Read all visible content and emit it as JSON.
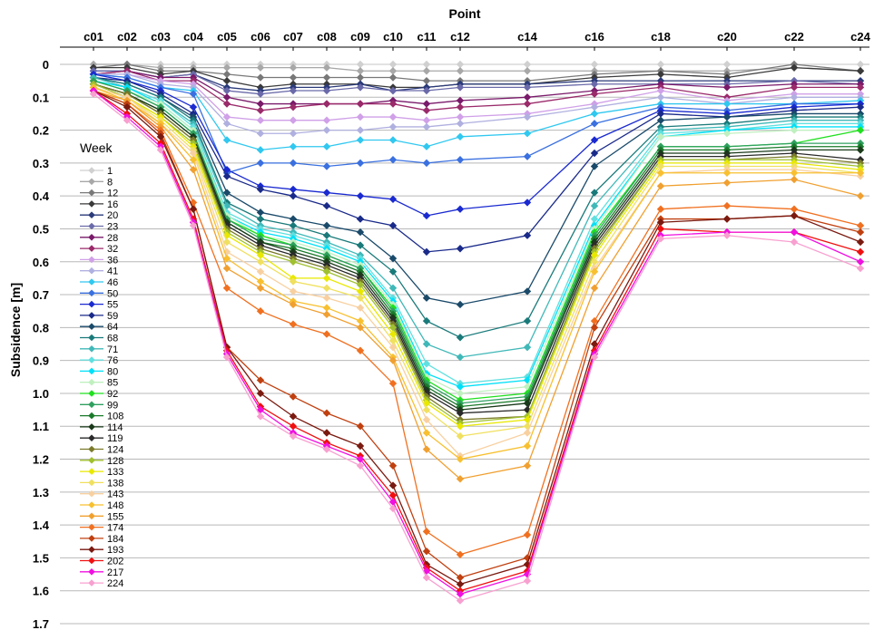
{
  "chart_data": {
    "type": "line",
    "xlabel": "Point",
    "ylabel": "Subsidence [m]",
    "legend_title": "Week",
    "legend_position": "left",
    "grid": true,
    "y_inverted": true,
    "ylim": [
      0,
      1.7
    ],
    "yticks": [
      "0",
      "0.1",
      "0.2",
      "0.3",
      "0.4",
      "0.5",
      "0.6",
      "0.7",
      "0.8",
      "0.9",
      "1.0",
      "1.1",
      "1.2",
      "1.3",
      "1.4",
      "1.5",
      "1.6",
      "1.7"
    ],
    "categories": [
      "c01",
      "c02",
      "c03",
      "c04",
      "c05",
      "c06",
      "c07",
      "c08",
      "c09",
      "c10",
      "c11",
      "c12",
      "c14",
      "c16",
      "c18",
      "c20",
      "c22",
      "c24"
    ],
    "series": [
      {
        "name": "1",
        "color": "#d0d0d0",
        "values": [
          0.0,
          0.0,
          0.0,
          0.0,
          0.0,
          0.0,
          0.0,
          0.0,
          0.0,
          0.0,
          0.0,
          0.0,
          0.0,
          0.0,
          0.0,
          0.0,
          0.0,
          0.0
        ]
      },
      {
        "name": "8",
        "color": "#a8a8a8",
        "values": [
          0.0,
          0.0,
          0.01,
          0.01,
          0.01,
          0.01,
          0.01,
          0.01,
          0.02,
          0.02,
          0.02,
          0.02,
          0.02,
          0.02,
          0.02,
          0.02,
          0.01,
          0.02
        ]
      },
      {
        "name": "12",
        "color": "#787878",
        "values": [
          0.01,
          0.0,
          0.02,
          0.02,
          0.03,
          0.04,
          0.04,
          0.04,
          0.04,
          0.04,
          0.05,
          0.05,
          0.05,
          0.03,
          0.02,
          0.03,
          0.0,
          0.02
        ]
      },
      {
        "name": "16",
        "color": "#3a3a3a",
        "values": [
          0.01,
          0.01,
          0.03,
          0.02,
          0.05,
          0.07,
          0.06,
          0.06,
          0.06,
          0.07,
          0.07,
          0.06,
          0.06,
          0.04,
          0.03,
          0.04,
          0.01,
          0.02
        ]
      },
      {
        "name": "20",
        "color": "#2a3a7a",
        "values": [
          0.02,
          0.02,
          0.04,
          0.03,
          0.07,
          0.08,
          0.07,
          0.07,
          0.06,
          0.08,
          0.07,
          0.06,
          0.06,
          0.05,
          0.05,
          0.05,
          0.05,
          0.05
        ]
      },
      {
        "name": "23",
        "color": "#6a6aaa",
        "values": [
          0.02,
          0.02,
          0.04,
          0.03,
          0.08,
          0.09,
          0.08,
          0.08,
          0.07,
          0.08,
          0.08,
          0.07,
          0.07,
          0.06,
          0.06,
          0.06,
          0.05,
          0.06
        ]
      },
      {
        "name": "28",
        "color": "#7a1a6a",
        "values": [
          0.03,
          0.02,
          0.04,
          0.04,
          0.1,
          0.12,
          0.12,
          0.12,
          0.12,
          0.11,
          0.12,
          0.11,
          0.1,
          0.08,
          0.06,
          0.07,
          0.06,
          0.06
        ]
      },
      {
        "name": "32",
        "color": "#9a2a6a",
        "values": [
          0.03,
          0.02,
          0.05,
          0.05,
          0.12,
          0.14,
          0.13,
          0.12,
          0.12,
          0.12,
          0.14,
          0.13,
          0.12,
          0.09,
          0.07,
          0.1,
          0.07,
          0.07
        ]
      },
      {
        "name": "36",
        "color": "#d0a0e8",
        "values": [
          0.03,
          0.03,
          0.05,
          0.06,
          0.16,
          0.17,
          0.17,
          0.17,
          0.16,
          0.16,
          0.17,
          0.16,
          0.15,
          0.12,
          0.08,
          0.11,
          0.09,
          0.09
        ]
      },
      {
        "name": "41",
        "color": "#b0b0e0",
        "values": [
          0.03,
          0.03,
          0.06,
          0.07,
          0.18,
          0.21,
          0.21,
          0.2,
          0.2,
          0.19,
          0.19,
          0.18,
          0.16,
          0.13,
          0.1,
          0.12,
          0.1,
          0.1
        ]
      },
      {
        "name": "46",
        "color": "#30c8f0",
        "values": [
          0.03,
          0.04,
          0.07,
          0.08,
          0.23,
          0.26,
          0.25,
          0.25,
          0.23,
          0.23,
          0.25,
          0.22,
          0.21,
          0.15,
          0.12,
          0.12,
          0.12,
          0.11
        ]
      },
      {
        "name": "50",
        "color": "#3a70e0",
        "values": [
          0.03,
          0.04,
          0.07,
          0.09,
          0.33,
          0.3,
          0.3,
          0.31,
          0.3,
          0.29,
          0.3,
          0.29,
          0.28,
          0.18,
          0.13,
          0.14,
          0.12,
          0.12
        ]
      },
      {
        "name": "55",
        "color": "#1a2ad0",
        "values": [
          0.03,
          0.05,
          0.08,
          0.13,
          0.32,
          0.37,
          0.38,
          0.39,
          0.4,
          0.41,
          0.46,
          0.44,
          0.42,
          0.23,
          0.14,
          0.15,
          0.13,
          0.12
        ]
      },
      {
        "name": "59",
        "color": "#1a2a8a",
        "values": [
          0.04,
          0.05,
          0.09,
          0.15,
          0.34,
          0.38,
          0.4,
          0.43,
          0.47,
          0.49,
          0.57,
          0.56,
          0.52,
          0.27,
          0.15,
          0.16,
          0.14,
          0.13
        ]
      },
      {
        "name": "64",
        "color": "#1a4a6a",
        "values": [
          0.04,
          0.06,
          0.1,
          0.16,
          0.39,
          0.45,
          0.47,
          0.49,
          0.51,
          0.59,
          0.71,
          0.73,
          0.69,
          0.31,
          0.17,
          0.16,
          0.15,
          0.15
        ]
      },
      {
        "name": "68",
        "color": "#1a7a7a",
        "values": [
          0.04,
          0.06,
          0.1,
          0.17,
          0.42,
          0.47,
          0.49,
          0.52,
          0.55,
          0.63,
          0.78,
          0.83,
          0.78,
          0.39,
          0.19,
          0.18,
          0.16,
          0.16
        ]
      },
      {
        "name": "71",
        "color": "#40b8b8",
        "values": [
          0.04,
          0.07,
          0.11,
          0.18,
          0.43,
          0.49,
          0.51,
          0.54,
          0.58,
          0.68,
          0.85,
          0.89,
          0.86,
          0.43,
          0.2,
          0.19,
          0.17,
          0.17
        ]
      },
      {
        "name": "76",
        "color": "#60e0e0",
        "values": [
          0.05,
          0.07,
          0.11,
          0.19,
          0.45,
          0.5,
          0.52,
          0.55,
          0.59,
          0.71,
          0.91,
          0.97,
          0.95,
          0.47,
          0.21,
          0.2,
          0.18,
          0.18
        ]
      },
      {
        "name": "80",
        "color": "#00e0f8",
        "values": [
          0.05,
          0.07,
          0.12,
          0.2,
          0.46,
          0.51,
          0.53,
          0.56,
          0.6,
          0.72,
          0.94,
          0.98,
          0.96,
          0.49,
          0.22,
          0.2,
          0.19,
          0.19
        ]
      },
      {
        "name": "85",
        "color": "#c0f0c0",
        "values": [
          0.05,
          0.08,
          0.12,
          0.2,
          0.46,
          0.52,
          0.54,
          0.57,
          0.61,
          0.73,
          0.95,
          1.0,
          0.98,
          0.5,
          0.22,
          0.21,
          0.2,
          0.2
        ]
      },
      {
        "name": "92",
        "color": "#20e020",
        "values": [
          0.05,
          0.08,
          0.13,
          0.21,
          0.47,
          0.52,
          0.55,
          0.58,
          0.62,
          0.74,
          0.96,
          1.02,
          1.0,
          0.51,
          0.25,
          0.25,
          0.24,
          0.2
        ]
      },
      {
        "name": "99",
        "color": "#30a060",
        "values": [
          0.05,
          0.08,
          0.13,
          0.21,
          0.47,
          0.53,
          0.55,
          0.58,
          0.62,
          0.75,
          0.97,
          1.03,
          1.01,
          0.52,
          0.25,
          0.25,
          0.24,
          0.24
        ]
      },
      {
        "name": "108",
        "color": "#1a7a2a",
        "values": [
          0.06,
          0.09,
          0.14,
          0.22,
          0.48,
          0.54,
          0.56,
          0.59,
          0.63,
          0.76,
          0.98,
          1.04,
          1.02,
          0.53,
          0.26,
          0.26,
          0.25,
          0.25
        ]
      },
      {
        "name": "114",
        "color": "#1a3a1a",
        "values": [
          0.06,
          0.09,
          0.14,
          0.22,
          0.48,
          0.54,
          0.57,
          0.6,
          0.64,
          0.77,
          0.99,
          1.05,
          1.03,
          0.54,
          0.27,
          0.27,
          0.26,
          0.26
        ]
      },
      {
        "name": "119",
        "color": "#2a2a2a",
        "values": [
          0.06,
          0.09,
          0.15,
          0.23,
          0.49,
          0.55,
          0.58,
          0.61,
          0.65,
          0.78,
          1.0,
          1.06,
          1.05,
          0.55,
          0.28,
          0.28,
          0.27,
          0.29
        ]
      },
      {
        "name": "124",
        "color": "#7a7a2a",
        "values": [
          0.06,
          0.09,
          0.15,
          0.23,
          0.5,
          0.56,
          0.59,
          0.62,
          0.66,
          0.79,
          1.01,
          1.08,
          1.07,
          0.56,
          0.29,
          0.29,
          0.28,
          0.3
        ]
      },
      {
        "name": "128",
        "color": "#a0c030",
        "values": [
          0.06,
          0.1,
          0.16,
          0.24,
          0.51,
          0.57,
          0.6,
          0.63,
          0.67,
          0.8,
          1.02,
          1.09,
          1.07,
          0.57,
          0.29,
          0.29,
          0.29,
          0.31
        ]
      },
      {
        "name": "133",
        "color": "#e8e800",
        "values": [
          0.07,
          0.1,
          0.16,
          0.25,
          0.52,
          0.58,
          0.65,
          0.65,
          0.69,
          0.82,
          1.03,
          1.1,
          1.08,
          0.58,
          0.3,
          0.3,
          0.3,
          0.32
        ]
      },
      {
        "name": "138",
        "color": "#f0e060",
        "values": [
          0.07,
          0.1,
          0.17,
          0.26,
          0.54,
          0.6,
          0.66,
          0.68,
          0.71,
          0.84,
          1.05,
          1.13,
          1.1,
          0.6,
          0.31,
          0.31,
          0.31,
          0.33
        ]
      },
      {
        "name": "143",
        "color": "#f8d0a0",
        "values": [
          0.07,
          0.1,
          0.18,
          0.27,
          0.57,
          0.63,
          0.69,
          0.71,
          0.74,
          0.86,
          1.08,
          1.19,
          1.12,
          0.62,
          0.33,
          0.32,
          0.32,
          0.34
        ]
      },
      {
        "name": "148",
        "color": "#f8c030",
        "values": [
          0.07,
          0.11,
          0.18,
          0.29,
          0.59,
          0.66,
          0.72,
          0.74,
          0.78,
          0.89,
          1.12,
          1.2,
          1.16,
          0.63,
          0.33,
          0.33,
          0.33,
          0.33
        ]
      },
      {
        "name": "155",
        "color": "#f0a030",
        "values": [
          0.08,
          0.11,
          0.19,
          0.32,
          0.62,
          0.68,
          0.73,
          0.76,
          0.8,
          0.9,
          1.17,
          1.26,
          1.22,
          0.68,
          0.37,
          0.36,
          0.35,
          0.4
        ]
      },
      {
        "name": "174",
        "color": "#f07020",
        "values": [
          0.08,
          0.12,
          0.2,
          0.42,
          0.68,
          0.75,
          0.79,
          0.82,
          0.87,
          0.97,
          1.42,
          1.49,
          1.43,
          0.78,
          0.44,
          0.43,
          0.44,
          0.49
        ]
      },
      {
        "name": "184",
        "color": "#c04010",
        "values": [
          0.08,
          0.12,
          0.21,
          0.44,
          0.86,
          0.96,
          1.01,
          1.06,
          1.1,
          1.22,
          1.48,
          1.56,
          1.5,
          0.8,
          0.47,
          0.47,
          0.46,
          0.51
        ]
      },
      {
        "name": "193",
        "color": "#7a1a10",
        "values": [
          0.08,
          0.13,
          0.22,
          0.44,
          0.86,
          1.0,
          1.07,
          1.12,
          1.16,
          1.28,
          1.52,
          1.58,
          1.52,
          0.85,
          0.48,
          0.47,
          0.46,
          0.54
        ]
      },
      {
        "name": "202",
        "color": "#f01010",
        "values": [
          0.08,
          0.15,
          0.24,
          0.47,
          0.87,
          1.04,
          1.1,
          1.15,
          1.19,
          1.31,
          1.53,
          1.6,
          1.54,
          0.87,
          0.5,
          0.51,
          0.51,
          0.57
        ]
      },
      {
        "name": "217",
        "color": "#f010e0",
        "values": [
          0.08,
          0.16,
          0.25,
          0.48,
          0.88,
          1.05,
          1.12,
          1.16,
          1.2,
          1.33,
          1.54,
          1.61,
          1.55,
          0.88,
          0.52,
          0.51,
          0.51,
          0.6
        ]
      },
      {
        "name": "224",
        "color": "#f8a0d0",
        "values": [
          0.09,
          0.17,
          0.26,
          0.49,
          0.89,
          1.07,
          1.13,
          1.17,
          1.22,
          1.35,
          1.56,
          1.63,
          1.57,
          0.89,
          0.53,
          0.52,
          0.54,
          0.62
        ]
      }
    ]
  }
}
